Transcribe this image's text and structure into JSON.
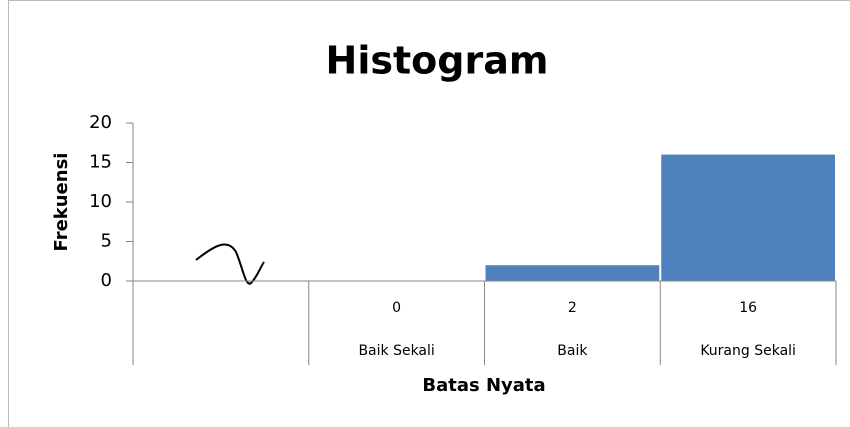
{
  "chart_data": {
    "type": "bar",
    "title": "Histogram",
    "x_label": "Batas Nyata",
    "y_label": "Frekuensi",
    "categories": [
      null,
      "Baik Sekali",
      "Baik",
      "Kurang Sekali"
    ],
    "values": [
      null,
      0,
      2,
      16
    ],
    "color": "#4f81bd",
    "ylim": [
      0,
      20
    ],
    "yticks": [
      0,
      5,
      10,
      15,
      20
    ]
  }
}
